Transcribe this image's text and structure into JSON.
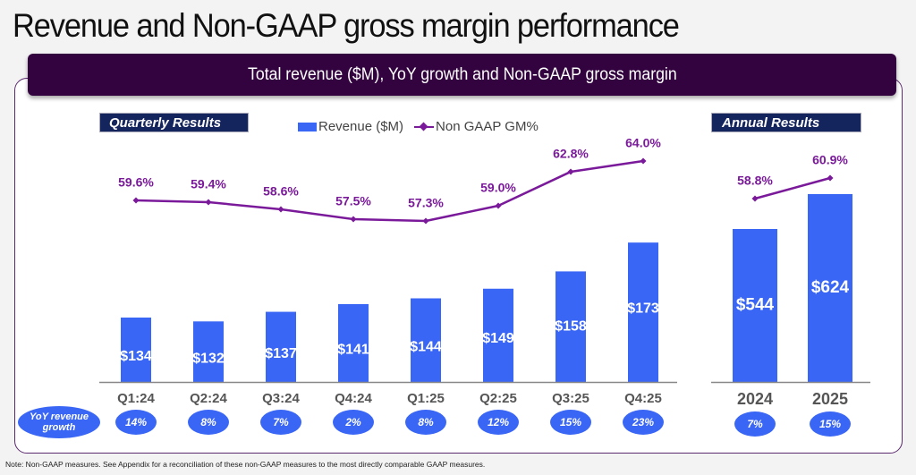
{
  "page": {
    "title": "Revenue and Non-GAAP gross margin performance",
    "banner": "Total revenue ($M), YoY growth and Non-GAAP gross margin",
    "note": "Note: Non-GAAP measures. See Appendix for a reconciliation of these non-GAAP measures to the most directly comparable GAAP measures."
  },
  "colors": {
    "bar": "#3a66f5",
    "line": "#7a1a9a",
    "banner": "#33033f",
    "section_tag": "#14245c",
    "axis_label": "#555555"
  },
  "legend": {
    "bar_label": "Revenue ($M)",
    "line_label": "Non GAAP GM%"
  },
  "growth_label": "YoY revenue growth",
  "chart_data": [
    {
      "type": "bar",
      "title": "Quarterly Results",
      "categories": [
        "Q1:24",
        "Q2:24",
        "Q3:24",
        "Q4:24",
        "Q1:25",
        "Q2:25",
        "Q3:25",
        "Q4:25"
      ],
      "series": [
        {
          "name": "Revenue ($M)",
          "kind": "bar",
          "values": [
            134,
            132,
            137,
            141,
            144,
            149,
            158,
            173
          ],
          "labels": [
            "$134",
            "$132",
            "$137",
            "$141",
            "$144",
            "$149",
            "$158",
            "$173"
          ]
        },
        {
          "name": "Non GAAP GM%",
          "kind": "line",
          "values": [
            59.6,
            59.4,
            58.6,
            57.5,
            57.3,
            59.0,
            62.8,
            64.0
          ],
          "labels": [
            "59.6%",
            "59.4%",
            "58.6%",
            "57.5%",
            "57.3%",
            "59.0%",
            "62.8%",
            "64.0%"
          ]
        }
      ],
      "yoy_growth": [
        "14%",
        "8%",
        "7%",
        "2%",
        "8%",
        "12%",
        "15%",
        "23%"
      ],
      "xlabel": "",
      "ylabel": "",
      "grid": false,
      "legend": "top-center"
    },
    {
      "type": "bar",
      "title": "Annual Results",
      "categories": [
        "2024",
        "2025"
      ],
      "series": [
        {
          "name": "Revenue ($M)",
          "kind": "bar",
          "values": [
            544,
            624
          ],
          "labels": [
            "$544",
            "$624"
          ]
        },
        {
          "name": "Non GAAP GM%",
          "kind": "line",
          "values": [
            58.8,
            60.9
          ],
          "labels": [
            "58.8%",
            "60.9%"
          ]
        }
      ],
      "yoy_growth": [
        "7%",
        "15%"
      ],
      "xlabel": "",
      "ylabel": "",
      "grid": false
    }
  ]
}
